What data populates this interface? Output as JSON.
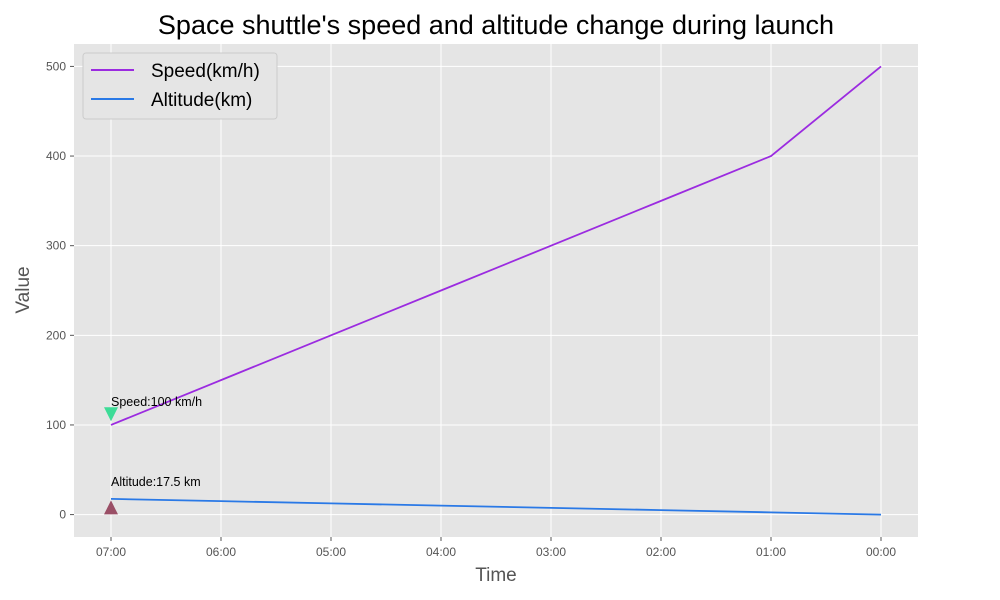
{
  "chart_data": {
    "type": "line",
    "title": "Space shuttle's speed and altitude change during launch",
    "xlabel": "Time",
    "ylabel": "Value",
    "categories": [
      "07:00",
      "06:00",
      "05:00",
      "04:00",
      "03:00",
      "02:00",
      "01:00",
      "00:00"
    ],
    "ylim": [
      -25,
      525
    ],
    "yticks": [
      0,
      100,
      200,
      300,
      400,
      500
    ],
    "grid": true,
    "legend_position": "top-left",
    "series": [
      {
        "name": "Speed(km/h)",
        "color": "#9b2be0",
        "values": [
          100,
          150,
          200,
          250,
          300,
          350,
          400,
          500
        ]
      },
      {
        "name": "Altitude(km)",
        "color": "#2a79e6",
        "values": [
          17.5,
          15,
          12.5,
          10,
          7.5,
          5,
          2.5,
          0
        ]
      }
    ],
    "annotations": [
      {
        "text": "Speed:100 km/h",
        "category": "07:00",
        "value": 100,
        "marker": "triangle-down",
        "marker_color": "#3ddc97",
        "marker_value": 112
      },
      {
        "text": "Altitude:17.5 km",
        "category": "07:00",
        "value": 17.5,
        "marker": "triangle-up",
        "marker_color": "#9a4f66",
        "marker_value": 8
      }
    ],
    "colors": {
      "plot_background": "#e5e5e5",
      "grid": "#ffffff"
    }
  }
}
